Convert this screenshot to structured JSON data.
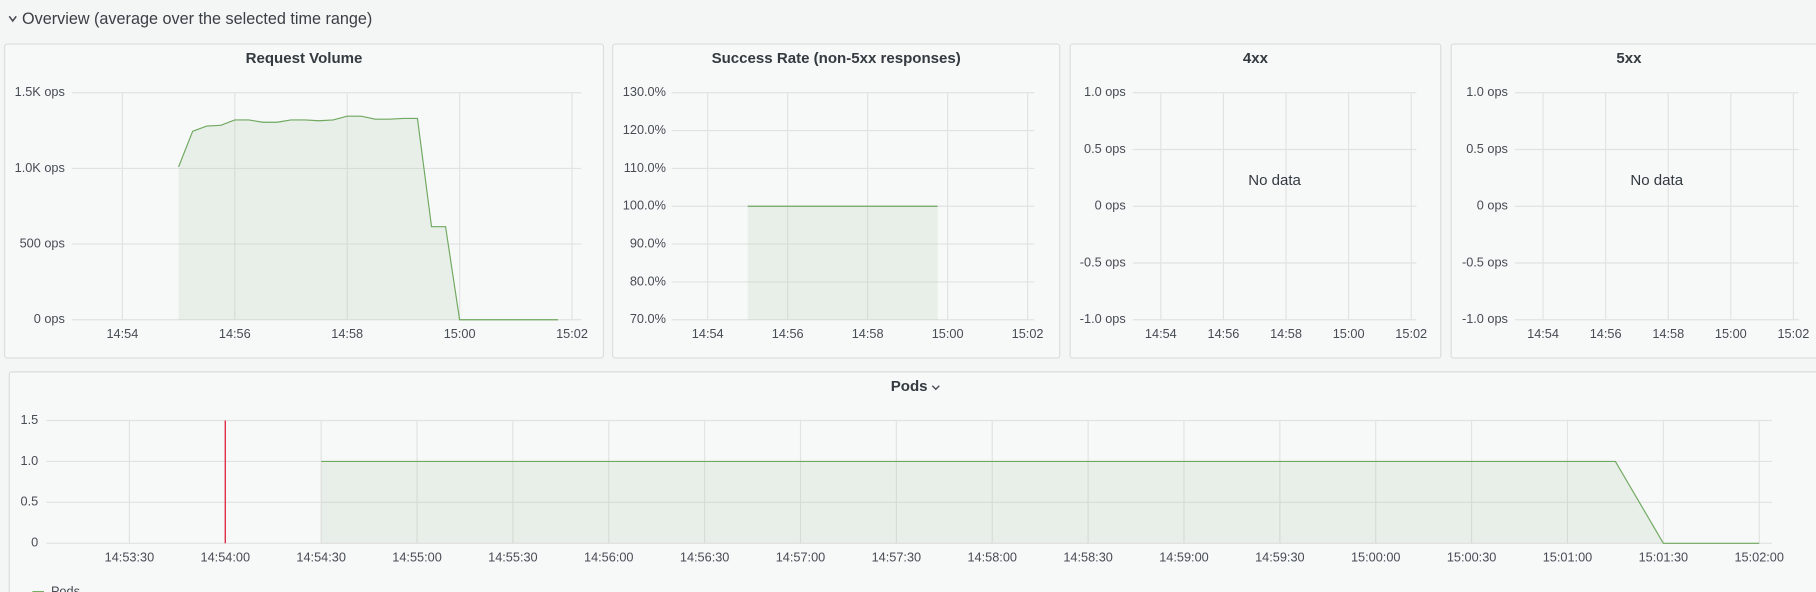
{
  "section_title": "Overview (average over the selected time range)",
  "chart_data": [
    {
      "type": "line",
      "title": "Request Volume",
      "x": [
        "14:55:00",
        "14:55:15",
        "14:55:30",
        "14:55:45",
        "14:56:00",
        "14:56:15",
        "14:56:30",
        "14:56:45",
        "14:57:00",
        "14:57:15",
        "14:57:30",
        "14:57:45",
        "14:58:00",
        "14:58:15",
        "14:58:30",
        "14:58:45",
        "14:59:00",
        "14:59:15",
        "14:59:30",
        "14:59:45",
        "15:00:00",
        "15:01:45"
      ],
      "values": [
        1010,
        1245,
        1280,
        1285,
        1320,
        1320,
        1305,
        1305,
        1320,
        1320,
        1315,
        1320,
        1345,
        1345,
        1325,
        1325,
        1330,
        1330,
        615,
        615,
        0,
        0
      ],
      "color": "#6fa85f",
      "xlim": [
        "14:53:06",
        "15:02:10"
      ],
      "xticks": [
        "14:54",
        "14:56",
        "14:58",
        "15:00",
        "15:02"
      ],
      "ylim": [
        0,
        1500
      ],
      "yticks": [
        {
          "value": 0,
          "label": "0 ops"
        },
        {
          "value": 500,
          "label": "500 ops"
        },
        {
          "value": 1000,
          "label": "1.0K ops"
        },
        {
          "value": 1500,
          "label": "1.5K ops"
        }
      ],
      "grid": true
    },
    {
      "type": "line",
      "title": "Success Rate (non-5xx responses)",
      "x": [
        "14:55:00",
        "14:57:30",
        "14:59:45"
      ],
      "values": [
        100,
        100,
        100
      ],
      "color": "#6fa85f",
      "xlim": [
        "14:53:06",
        "15:02:10"
      ],
      "xticks": [
        "14:54",
        "14:56",
        "14:58",
        "15:00",
        "15:02"
      ],
      "ylim": [
        70,
        130
      ],
      "yticks": [
        {
          "value": 70,
          "label": "70.0%"
        },
        {
          "value": 80,
          "label": "80.0%"
        },
        {
          "value": 90,
          "label": "90.0%"
        },
        {
          "value": 100,
          "label": "100.0%"
        },
        {
          "value": 110,
          "label": "110.0%"
        },
        {
          "value": 120,
          "label": "120.0%"
        },
        {
          "value": 130,
          "label": "130.0%"
        }
      ],
      "grid": true
    },
    {
      "type": "line",
      "title": "4xx",
      "x": [],
      "values": [],
      "color": "#6fa85f",
      "no_data": "No data",
      "xlim": [
        "14:53:06",
        "15:02:10"
      ],
      "xticks": [
        "14:54",
        "14:56",
        "14:58",
        "15:00",
        "15:02"
      ],
      "ylim": [
        -1,
        1
      ],
      "yticks": [
        {
          "value": -1,
          "label": "-1.0 ops"
        },
        {
          "value": -0.5,
          "label": "-0.5 ops"
        },
        {
          "value": 0,
          "label": "0 ops"
        },
        {
          "value": 0.5,
          "label": "0.5 ops"
        },
        {
          "value": 1,
          "label": "1.0 ops"
        }
      ],
      "grid": true
    },
    {
      "type": "line",
      "title": "5xx",
      "x": [],
      "values": [],
      "color": "#6fa85f",
      "no_data": "No data",
      "xlim": [
        "14:53:06",
        "15:02:10"
      ],
      "xticks": [
        "14:54",
        "14:56",
        "14:58",
        "15:00",
        "15:02"
      ],
      "ylim": [
        -1,
        1
      ],
      "yticks": [
        {
          "value": -1,
          "label": "-1.0 ops"
        },
        {
          "value": -0.5,
          "label": "-0.5 ops"
        },
        {
          "value": 0,
          "label": "0 ops"
        },
        {
          "value": 0.5,
          "label": "0.5 ops"
        },
        {
          "value": 1,
          "label": "1.0 ops"
        }
      ],
      "grid": true
    },
    {
      "type": "line",
      "title": "Pods",
      "x": [
        "14:54:30",
        "15:01:15",
        "15:01:30",
        "15:02:00"
      ],
      "series": [
        {
          "name": "Pods",
          "color": "#6fa85f",
          "values": [
            1,
            1,
            0,
            0
          ]
        }
      ],
      "annotations": [
        {
          "x": "14:54:00",
          "color": "#e02f44"
        }
      ],
      "xlim": [
        "14:53:04",
        "15:02:04"
      ],
      "xticks": [
        "14:53:30",
        "14:54:00",
        "14:54:30",
        "14:55:00",
        "14:55:30",
        "14:56:00",
        "14:56:30",
        "14:57:00",
        "14:57:30",
        "14:58:00",
        "14:58:30",
        "14:59:00",
        "14:59:30",
        "15:00:00",
        "15:00:30",
        "15:01:00",
        "15:01:30",
        "15:02:00"
      ],
      "ylim": [
        0,
        1.5
      ],
      "yticks": [
        0,
        0.5,
        {
          "value": 1,
          "label": "1.0"
        },
        1.5
      ],
      "grid": true,
      "legend": "bottom-left"
    }
  ]
}
